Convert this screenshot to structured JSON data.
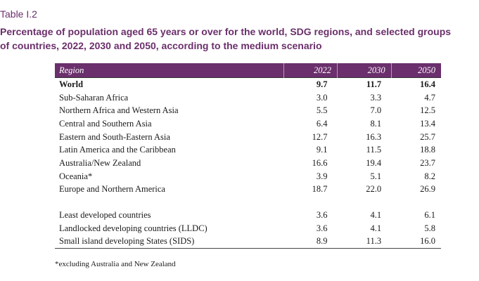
{
  "table_label": "Table I.2",
  "title_line1": "Percentage of population aged 65 years or over for the world, SDG regions, and selected groups",
  "title_line2": "of countries, 2022, 2030 and 2050, according to the medium scenario",
  "header": {
    "region": "Region",
    "y2022": "2022",
    "y2030": "2030",
    "y2050": "2050"
  },
  "rows": [
    {
      "region": "World",
      "v2022": "9.7",
      "v2030": "11.7",
      "v2050": "16.4"
    },
    {
      "region": "Sub-Saharan Africa",
      "v2022": "3.0",
      "v2030": "3.3",
      "v2050": "4.7"
    },
    {
      "region": "Northern Africa and Western Asia",
      "v2022": "5.5",
      "v2030": "7.0",
      "v2050": "12.5"
    },
    {
      "region": "Central and Southern Asia",
      "v2022": "6.4",
      "v2030": "8.1",
      "v2050": "13.4"
    },
    {
      "region": "Eastern and South-Eastern Asia",
      "v2022": "12.7",
      "v2030": "16.3",
      "v2050": "25.7"
    },
    {
      "region": "Latin America and the Caribbean",
      "v2022": "9.1",
      "v2030": "11.5",
      "v2050": "18.8"
    },
    {
      "region": "Australia/New Zealand",
      "v2022": "16.6",
      "v2030": "19.4",
      "v2050": "23.7"
    },
    {
      "region": "Oceania*",
      "v2022": "3.9",
      "v2030": "5.1",
      "v2050": "8.2"
    },
    {
      "region": "Europe and Northern America",
      "v2022": "18.7",
      "v2030": "22.0",
      "v2050": "26.9"
    },
    {
      "region": "Least developed countries",
      "v2022": "3.6",
      "v2030": "4.1",
      "v2050": "6.1"
    },
    {
      "region": "Landlocked developing countries (LLDC)",
      "v2022": "3.6",
      "v2030": "4.1",
      "v2050": "5.8"
    },
    {
      "region": "Small island developing States (SIDS)",
      "v2022": "8.9",
      "v2030": "11.3",
      "v2050": "16.0"
    }
  ],
  "footnote": "*excluding Australia and New Zealand",
  "colors": {
    "header_bg": "#6a2f6c",
    "title": "#6b2f6b"
  }
}
